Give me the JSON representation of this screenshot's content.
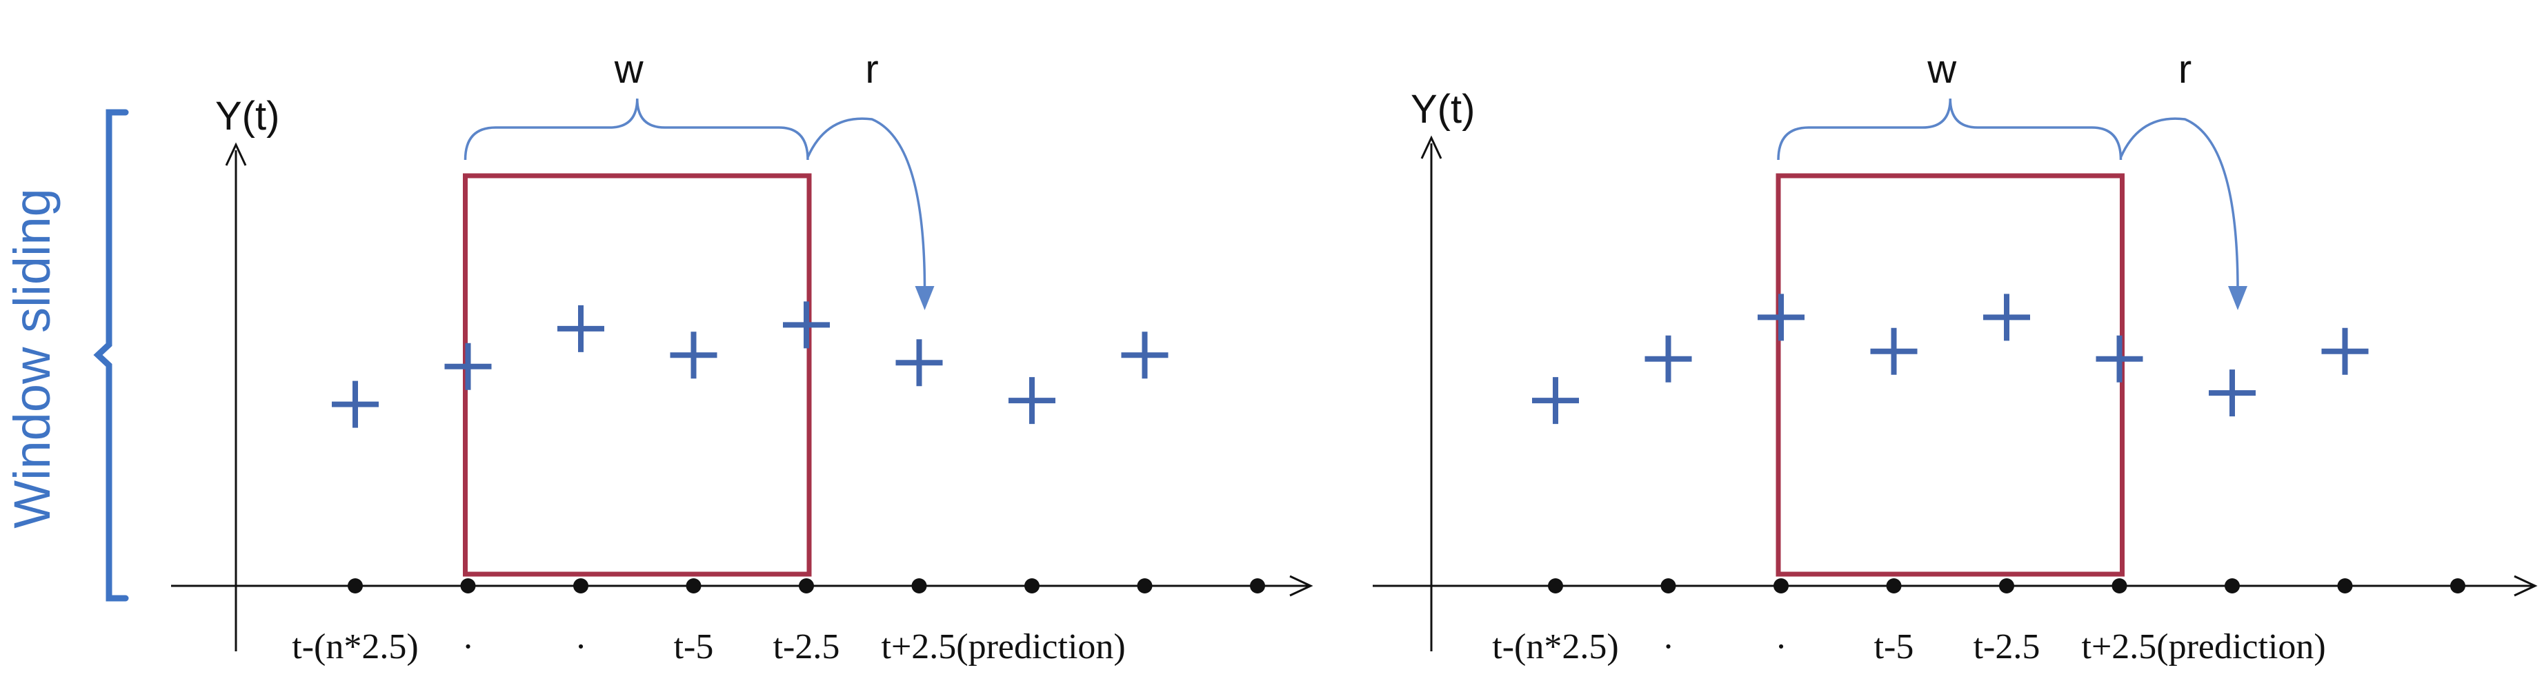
{
  "side_label": "Window sliding",
  "colors": {
    "marker": "#4266ad",
    "window": "#a5334a",
    "brace": "#5b85c9",
    "bracket": "#3f74c4",
    "axis": "#111111"
  },
  "panels": [
    {
      "y_label": "Y(t)",
      "window_label": "w",
      "shift_label": "r",
      "tick_labels": [
        "t-(n*2.5)",
        "·",
        "·",
        "t-5",
        "t-2.5",
        "t+2.5(prediction)"
      ],
      "marker_levels": [
        0.48,
        0.58,
        0.68,
        0.61,
        0.69,
        0.59,
        0.49,
        0.61
      ],
      "window_start": 1,
      "window_end": 4
    },
    {
      "y_label": "Y(t)",
      "window_label": "w",
      "shift_label": "r",
      "tick_labels": [
        "t-(n*2.5)",
        "·",
        "·",
        "t-5",
        "t-2.5",
        "t+2.5(prediction)"
      ],
      "marker_levels": [
        0.49,
        0.6,
        0.71,
        0.62,
        0.71,
        0.6,
        0.51,
        0.62
      ],
      "window_start": 2,
      "window_end": 5
    }
  ]
}
